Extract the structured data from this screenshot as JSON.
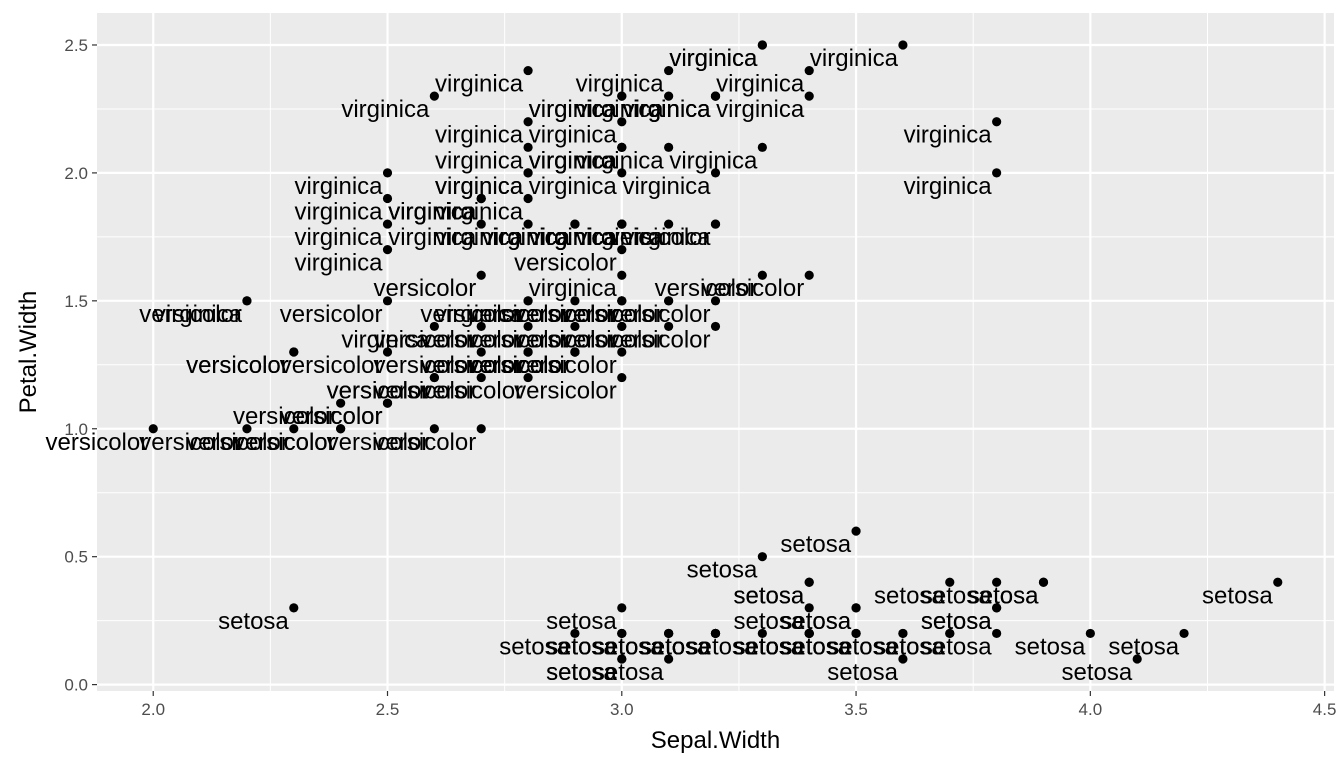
{
  "chart_data": {
    "type": "scatter",
    "title": "",
    "xlabel": "Sepal.Width",
    "ylabel": "Petal.Width",
    "xlim": [
      1.88,
      4.52
    ],
    "ylim": [
      -0.025,
      2.625
    ],
    "x_ticks": [
      2.0,
      2.5,
      3.0,
      3.5,
      4.0,
      4.5
    ],
    "x_tick_labels": [
      "2.0",
      "2.5",
      "3.0",
      "3.5",
      "4.0",
      "4.5"
    ],
    "y_ticks": [
      0.0,
      0.5,
      1.0,
      1.5,
      2.0,
      2.5
    ],
    "y_tick_labels": [
      "0.0",
      "0.5",
      "1.0",
      "1.5",
      "2.0",
      "2.5"
    ],
    "grid": true,
    "legend": "none",
    "colors": {
      "panel": "#ebebeb",
      "grid": "#ffffff",
      "point": "#000000"
    },
    "points": [
      {
        "x": 3.5,
        "y": 0.2,
        "label": "setosa"
      },
      {
        "x": 3.0,
        "y": 0.2,
        "label": "setosa"
      },
      {
        "x": 3.2,
        "y": 0.2,
        "label": "setosa"
      },
      {
        "x": 3.1,
        "y": 0.2,
        "label": "setosa"
      },
      {
        "x": 3.6,
        "y": 0.2,
        "label": "setosa"
      },
      {
        "x": 3.9,
        "y": 0.4,
        "label": "setosa"
      },
      {
        "x": 3.4,
        "y": 0.3,
        "label": "setosa"
      },
      {
        "x": 3.4,
        "y": 0.2,
        "label": "setosa"
      },
      {
        "x": 2.9,
        "y": 0.2,
        "label": "setosa"
      },
      {
        "x": 3.1,
        "y": 0.1,
        "label": "setosa"
      },
      {
        "x": 3.7,
        "y": 0.2,
        "label": "setosa"
      },
      {
        "x": 3.4,
        "y": 0.2,
        "label": "setosa"
      },
      {
        "x": 3.0,
        "y": 0.1,
        "label": "setosa"
      },
      {
        "x": 3.0,
        "y": 0.1,
        "label": "setosa"
      },
      {
        "x": 4.0,
        "y": 0.2,
        "label": "setosa"
      },
      {
        "x": 4.4,
        "y": 0.4,
        "label": "setosa"
      },
      {
        "x": 3.9,
        "y": 0.4,
        "label": "setosa"
      },
      {
        "x": 3.5,
        "y": 0.3,
        "label": "setosa"
      },
      {
        "x": 3.8,
        "y": 0.3,
        "label": "setosa"
      },
      {
        "x": 3.8,
        "y": 0.3,
        "label": "setosa"
      },
      {
        "x": 3.4,
        "y": 0.2,
        "label": "setosa"
      },
      {
        "x": 3.7,
        "y": 0.4,
        "label": "setosa"
      },
      {
        "x": 3.6,
        "y": 0.2,
        "label": "setosa"
      },
      {
        "x": 3.3,
        "y": 0.5,
        "label": "setosa"
      },
      {
        "x": 3.4,
        "y": 0.2,
        "label": "setosa"
      },
      {
        "x": 3.0,
        "y": 0.2,
        "label": "setosa"
      },
      {
        "x": 3.4,
        "y": 0.4,
        "label": "setosa"
      },
      {
        "x": 3.5,
        "y": 0.2,
        "label": "setosa"
      },
      {
        "x": 3.4,
        "y": 0.2,
        "label": "setosa"
      },
      {
        "x": 3.2,
        "y": 0.2,
        "label": "setosa"
      },
      {
        "x": 3.1,
        "y": 0.2,
        "label": "setosa"
      },
      {
        "x": 3.4,
        "y": 0.4,
        "label": "setosa"
      },
      {
        "x": 4.1,
        "y": 0.1,
        "label": "setosa"
      },
      {
        "x": 4.2,
        "y": 0.2,
        "label": "setosa"
      },
      {
        "x": 3.1,
        "y": 0.2,
        "label": "setosa"
      },
      {
        "x": 3.2,
        "y": 0.2,
        "label": "setosa"
      },
      {
        "x": 3.5,
        "y": 0.2,
        "label": "setosa"
      },
      {
        "x": 3.6,
        "y": 0.1,
        "label": "setosa"
      },
      {
        "x": 3.0,
        "y": 0.2,
        "label": "setosa"
      },
      {
        "x": 3.4,
        "y": 0.2,
        "label": "setosa"
      },
      {
        "x": 3.5,
        "y": 0.3,
        "label": "setosa"
      },
      {
        "x": 2.3,
        "y": 0.3,
        "label": "setosa"
      },
      {
        "x": 3.2,
        "y": 0.2,
        "label": "setosa"
      },
      {
        "x": 3.5,
        "y": 0.6,
        "label": "setosa"
      },
      {
        "x": 3.8,
        "y": 0.4,
        "label": "setosa"
      },
      {
        "x": 3.0,
        "y": 0.3,
        "label": "setosa"
      },
      {
        "x": 3.8,
        "y": 0.2,
        "label": "setosa"
      },
      {
        "x": 3.2,
        "y": 0.2,
        "label": "setosa"
      },
      {
        "x": 3.7,
        "y": 0.2,
        "label": "setosa"
      },
      {
        "x": 3.3,
        "y": 0.2,
        "label": "setosa"
      },
      {
        "x": 3.2,
        "y": 1.4,
        "label": "versicolor"
      },
      {
        "x": 3.2,
        "y": 1.5,
        "label": "versicolor"
      },
      {
        "x": 3.1,
        "y": 1.5,
        "label": "versicolor"
      },
      {
        "x": 2.3,
        "y": 1.3,
        "label": "versicolor"
      },
      {
        "x": 2.8,
        "y": 1.5,
        "label": "versicolor"
      },
      {
        "x": 2.8,
        "y": 1.3,
        "label": "versicolor"
      },
      {
        "x": 3.3,
        "y": 1.6,
        "label": "versicolor"
      },
      {
        "x": 2.4,
        "y": 1.0,
        "label": "versicolor"
      },
      {
        "x": 2.9,
        "y": 1.3,
        "label": "versicolor"
      },
      {
        "x": 2.7,
        "y": 1.4,
        "label": "versicolor"
      },
      {
        "x": 2.0,
        "y": 1.0,
        "label": "versicolor"
      },
      {
        "x": 3.0,
        "y": 1.5,
        "label": "versicolor"
      },
      {
        "x": 2.2,
        "y": 1.0,
        "label": "versicolor"
      },
      {
        "x": 2.9,
        "y": 1.4,
        "label": "versicolor"
      },
      {
        "x": 2.9,
        "y": 1.3,
        "label": "versicolor"
      },
      {
        "x": 3.1,
        "y": 1.4,
        "label": "versicolor"
      },
      {
        "x": 3.0,
        "y": 1.5,
        "label": "versicolor"
      },
      {
        "x": 2.7,
        "y": 1.0,
        "label": "versicolor"
      },
      {
        "x": 2.2,
        "y": 1.5,
        "label": "versicolor"
      },
      {
        "x": 2.5,
        "y": 1.1,
        "label": "versicolor"
      },
      {
        "x": 3.2,
        "y": 1.8,
        "label": "versicolor"
      },
      {
        "x": 2.8,
        "y": 1.3,
        "label": "versicolor"
      },
      {
        "x": 2.5,
        "y": 1.5,
        "label": "versicolor"
      },
      {
        "x": 2.8,
        "y": 1.2,
        "label": "versicolor"
      },
      {
        "x": 2.9,
        "y": 1.3,
        "label": "versicolor"
      },
      {
        "x": 3.0,
        "y": 1.4,
        "label": "versicolor"
      },
      {
        "x": 2.8,
        "y": 1.4,
        "label": "versicolor"
      },
      {
        "x": 3.0,
        "y": 1.7,
        "label": "versicolor"
      },
      {
        "x": 2.9,
        "y": 1.5,
        "label": "versicolor"
      },
      {
        "x": 2.6,
        "y": 1.0,
        "label": "versicolor"
      },
      {
        "x": 2.4,
        "y": 1.1,
        "label": "versicolor"
      },
      {
        "x": 2.4,
        "y": 1.0,
        "label": "versicolor"
      },
      {
        "x": 2.7,
        "y": 1.2,
        "label": "versicolor"
      },
      {
        "x": 2.7,
        "y": 1.6,
        "label": "versicolor"
      },
      {
        "x": 3.0,
        "y": 1.5,
        "label": "versicolor"
      },
      {
        "x": 3.4,
        "y": 1.6,
        "label": "versicolor"
      },
      {
        "x": 3.1,
        "y": 1.5,
        "label": "versicolor"
      },
      {
        "x": 2.3,
        "y": 1.3,
        "label": "versicolor"
      },
      {
        "x": 3.0,
        "y": 1.3,
        "label": "versicolor"
      },
      {
        "x": 2.5,
        "y": 1.3,
        "label": "versicolor"
      },
      {
        "x": 2.6,
        "y": 1.2,
        "label": "versicolor"
      },
      {
        "x": 3.0,
        "y": 1.4,
        "label": "versicolor"
      },
      {
        "x": 2.6,
        "y": 1.2,
        "label": "versicolor"
      },
      {
        "x": 2.3,
        "y": 1.0,
        "label": "versicolor"
      },
      {
        "x": 2.7,
        "y": 1.3,
        "label": "versicolor"
      },
      {
        "x": 3.0,
        "y": 1.2,
        "label": "versicolor"
      },
      {
        "x": 2.9,
        "y": 1.3,
        "label": "versicolor"
      },
      {
        "x": 2.9,
        "y": 1.3,
        "label": "versicolor"
      },
      {
        "x": 2.5,
        "y": 1.1,
        "label": "versicolor"
      },
      {
        "x": 2.8,
        "y": 1.3,
        "label": "versicolor"
      },
      {
        "x": 3.3,
        "y": 2.5,
        "label": "virginica"
      },
      {
        "x": 2.7,
        "y": 1.9,
        "label": "virginica"
      },
      {
        "x": 3.0,
        "y": 2.1,
        "label": "virginica"
      },
      {
        "x": 2.9,
        "y": 1.8,
        "label": "virginica"
      },
      {
        "x": 3.0,
        "y": 2.2,
        "label": "virginica"
      },
      {
        "x": 3.0,
        "y": 2.1,
        "label": "virginica"
      },
      {
        "x": 2.5,
        "y": 1.7,
        "label": "virginica"
      },
      {
        "x": 2.9,
        "y": 1.8,
        "label": "virginica"
      },
      {
        "x": 2.5,
        "y": 1.8,
        "label": "virginica"
      },
      {
        "x": 3.6,
        "y": 2.5,
        "label": "virginica"
      },
      {
        "x": 3.2,
        "y": 2.0,
        "label": "virginica"
      },
      {
        "x": 2.7,
        "y": 1.9,
        "label": "virginica"
      },
      {
        "x": 3.0,
        "y": 2.1,
        "label": "virginica"
      },
      {
        "x": 2.5,
        "y": 2.0,
        "label": "virginica"
      },
      {
        "x": 2.8,
        "y": 2.4,
        "label": "virginica"
      },
      {
        "x": 3.2,
        "y": 2.3,
        "label": "virginica"
      },
      {
        "x": 3.0,
        "y": 1.8,
        "label": "virginica"
      },
      {
        "x": 3.8,
        "y": 2.2,
        "label": "virginica"
      },
      {
        "x": 2.6,
        "y": 2.3,
        "label": "virginica"
      },
      {
        "x": 2.2,
        "y": 1.5,
        "label": "virginica"
      },
      {
        "x": 3.2,
        "y": 2.3,
        "label": "virginica"
      },
      {
        "x": 2.8,
        "y": 2.0,
        "label": "virginica"
      },
      {
        "x": 2.8,
        "y": 2.0,
        "label": "virginica"
      },
      {
        "x": 2.7,
        "y": 1.8,
        "label": "virginica"
      },
      {
        "x": 3.3,
        "y": 2.1,
        "label": "virginica"
      },
      {
        "x": 3.2,
        "y": 1.8,
        "label": "virginica"
      },
      {
        "x": 2.8,
        "y": 1.8,
        "label": "virginica"
      },
      {
        "x": 3.0,
        "y": 1.8,
        "label": "virginica"
      },
      {
        "x": 2.8,
        "y": 2.1,
        "label": "virginica"
      },
      {
        "x": 3.0,
        "y": 1.6,
        "label": "virginica"
      },
      {
        "x": 2.8,
        "y": 1.9,
        "label": "virginica"
      },
      {
        "x": 3.8,
        "y": 2.0,
        "label": "virginica"
      },
      {
        "x": 2.8,
        "y": 2.2,
        "label": "virginica"
      },
      {
        "x": 2.8,
        "y": 1.5,
        "label": "virginica"
      },
      {
        "x": 2.6,
        "y": 1.4,
        "label": "virginica"
      },
      {
        "x": 3.0,
        "y": 2.3,
        "label": "virginica"
      },
      {
        "x": 3.4,
        "y": 2.4,
        "label": "virginica"
      },
      {
        "x": 3.1,
        "y": 1.8,
        "label": "virginica"
      },
      {
        "x": 3.0,
        "y": 1.8,
        "label": "virginica"
      },
      {
        "x": 3.1,
        "y": 2.1,
        "label": "virginica"
      },
      {
        "x": 3.1,
        "y": 2.4,
        "label": "virginica"
      },
      {
        "x": 3.1,
        "y": 2.3,
        "label": "virginica"
      },
      {
        "x": 2.7,
        "y": 1.9,
        "label": "virginica"
      },
      {
        "x": 3.2,
        "y": 2.3,
        "label": "virginica"
      },
      {
        "x": 3.3,
        "y": 2.5,
        "label": "virginica"
      },
      {
        "x": 3.0,
        "y": 2.3,
        "label": "virginica"
      },
      {
        "x": 2.5,
        "y": 1.9,
        "label": "virginica"
      },
      {
        "x": 3.0,
        "y": 2.0,
        "label": "virginica"
      },
      {
        "x": 3.4,
        "y": 2.3,
        "label": "virginica"
      },
      {
        "x": 3.0,
        "y": 1.8,
        "label": "virginica"
      }
    ]
  }
}
